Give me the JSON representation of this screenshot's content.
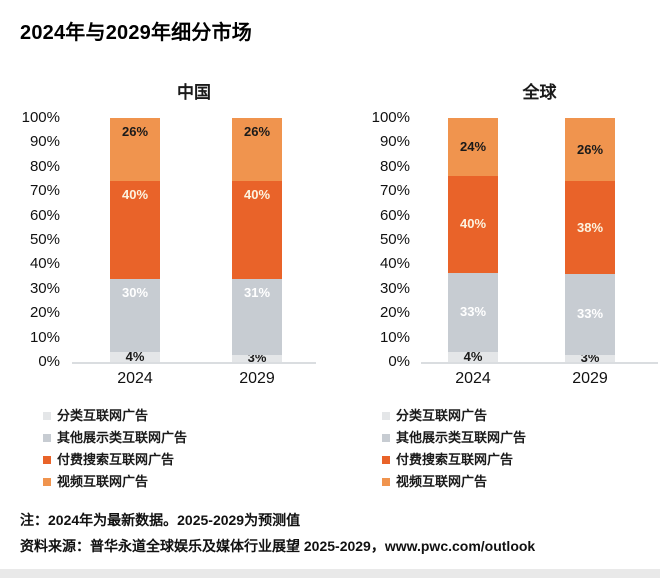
{
  "title": "2024年与2029年细分市场",
  "notes": {
    "line1": "注：2024年为最新数据。2025-2029为预测值",
    "line2": "资料来源：普华永道全球娱乐及媒体行业展望 2025-2029，www.pwc.com/outlook"
  },
  "colors": {
    "classified_gray_light": "#E4E6E8",
    "display_gray": "#C7CCD2",
    "paid_search_orange_dark": "#E96329",
    "video_orange_light": "#F0944E",
    "baseline_gray": "#DADDE0",
    "bottom_strip_gray": "#E9E9E9"
  },
  "chart_data": [
    {
      "type": "bar",
      "stacked": true,
      "title": "中国",
      "categories": [
        "2024",
        "2029"
      ],
      "series": [
        {
          "name": "分类互联网广告",
          "values": [
            4,
            3
          ],
          "color": "#E4E6E8",
          "label_color": "#1a1a1a"
        },
        {
          "name": "其他展示类互联网广告",
          "values": [
            30,
            31
          ],
          "color": "#C7CCD2",
          "label_color": "#ffffff"
        },
        {
          "name": "付费搜索互联网广告",
          "values": [
            40,
            40
          ],
          "color": "#E96329",
          "label_color": "#FCF4E0"
        },
        {
          "name": "视频互联网广告",
          "values": [
            26,
            26
          ],
          "color": "#F0944E",
          "label_color": "#1a1a1a"
        }
      ],
      "y_ticks": [
        "100%",
        "90%",
        "80%",
        "70%",
        "60%",
        "50%",
        "40%",
        "30%",
        "20%",
        "10%",
        "0%"
      ],
      "ylim": [
        0,
        100
      ],
      "label_anchor": "top",
      "legend_position": "bottom",
      "grid": false
    },
    {
      "type": "bar",
      "stacked": true,
      "title": "全球",
      "categories": [
        "2024",
        "2029"
      ],
      "series": [
        {
          "name": "分类互联网广告",
          "values": [
            4,
            3
          ],
          "color": "#E4E6E8",
          "label_color": "#1a1a1a"
        },
        {
          "name": "其他展示类互联网广告",
          "values": [
            33,
            33
          ],
          "color": "#C7CCD2",
          "label_color": "#ffffff"
        },
        {
          "name": "付费搜索互联网广告",
          "values": [
            40,
            38
          ],
          "color": "#E96329",
          "label_color": "#FCF4E0"
        },
        {
          "name": "视频互联网广告",
          "values": [
            24,
            26
          ],
          "color": "#F0944E",
          "label_color": "#1a1a1a"
        }
      ],
      "y_ticks": [
        "100%",
        "90%",
        "80%",
        "70%",
        "60%",
        "50%",
        "40%",
        "30%",
        "20%",
        "10%",
        "0%"
      ],
      "ylim": [
        0,
        100
      ],
      "label_anchor": "center",
      "legend_position": "bottom",
      "grid": false
    }
  ]
}
